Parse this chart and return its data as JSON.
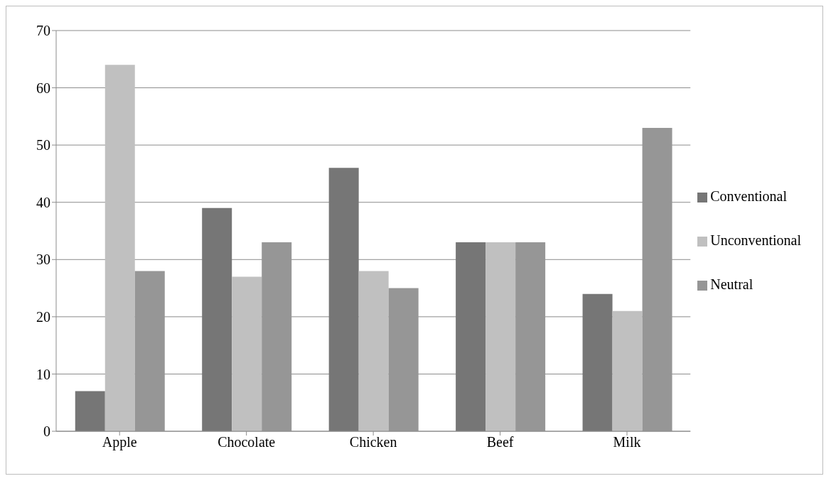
{
  "chart_data": {
    "type": "bar",
    "categories": [
      "Apple",
      "Chocolate",
      "Chicken",
      "Beef",
      "Milk"
    ],
    "series": [
      {
        "name": "Conventional",
        "color": "#767676",
        "values": [
          7,
          39,
          46,
          33,
          24
        ]
      },
      {
        "name": "Unconventional",
        "color": "#c0c0c0",
        "values": [
          64,
          27,
          28,
          33,
          21
        ]
      },
      {
        "name": "Neutral",
        "color": "#969696",
        "values": [
          28,
          33,
          25,
          33,
          53
        ]
      }
    ],
    "ylim": [
      0,
      70
    ],
    "yticks": [
      0,
      10,
      20,
      30,
      40,
      50,
      60,
      70
    ],
    "grid": "y",
    "legend": "right"
  }
}
